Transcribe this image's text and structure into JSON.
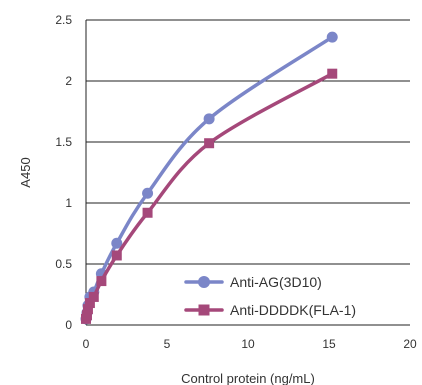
{
  "chart_data": {
    "type": "line",
    "title": "",
    "xlabel": "Control protein (ng/mL)",
    "ylabel": "A450",
    "xlim": [
      0,
      20
    ],
    "ylim": [
      0,
      2.5
    ],
    "x_ticks": [
      "0",
      "5",
      "10",
      "15",
      "20"
    ],
    "y_ticks": [
      "0",
      "0.5",
      "1",
      "1.5",
      "2",
      "2.5"
    ],
    "grid": "horizontal",
    "legend_position": "bottom-right",
    "series": [
      {
        "name": "Anti-AG(3D10)",
        "color": "#7B86C8",
        "marker": "circle",
        "x": [
          0,
          0.06,
          0.12,
          0.24,
          0.48,
          0.95,
          1.9,
          3.8,
          7.6,
          15.2
        ],
        "y": [
          0.05,
          0.1,
          0.16,
          0.23,
          0.27,
          0.42,
          0.67,
          1.08,
          1.69,
          2.36
        ]
      },
      {
        "name": "Anti-DDDDK(FLA-1)",
        "color": "#A5487A",
        "marker": "square",
        "x": [
          0,
          0.06,
          0.12,
          0.24,
          0.48,
          0.95,
          1.9,
          3.8,
          7.6,
          15.2
        ],
        "y": [
          0.05,
          0.08,
          0.13,
          0.18,
          0.23,
          0.36,
          0.57,
          0.92,
          1.49,
          2.06
        ]
      }
    ]
  }
}
